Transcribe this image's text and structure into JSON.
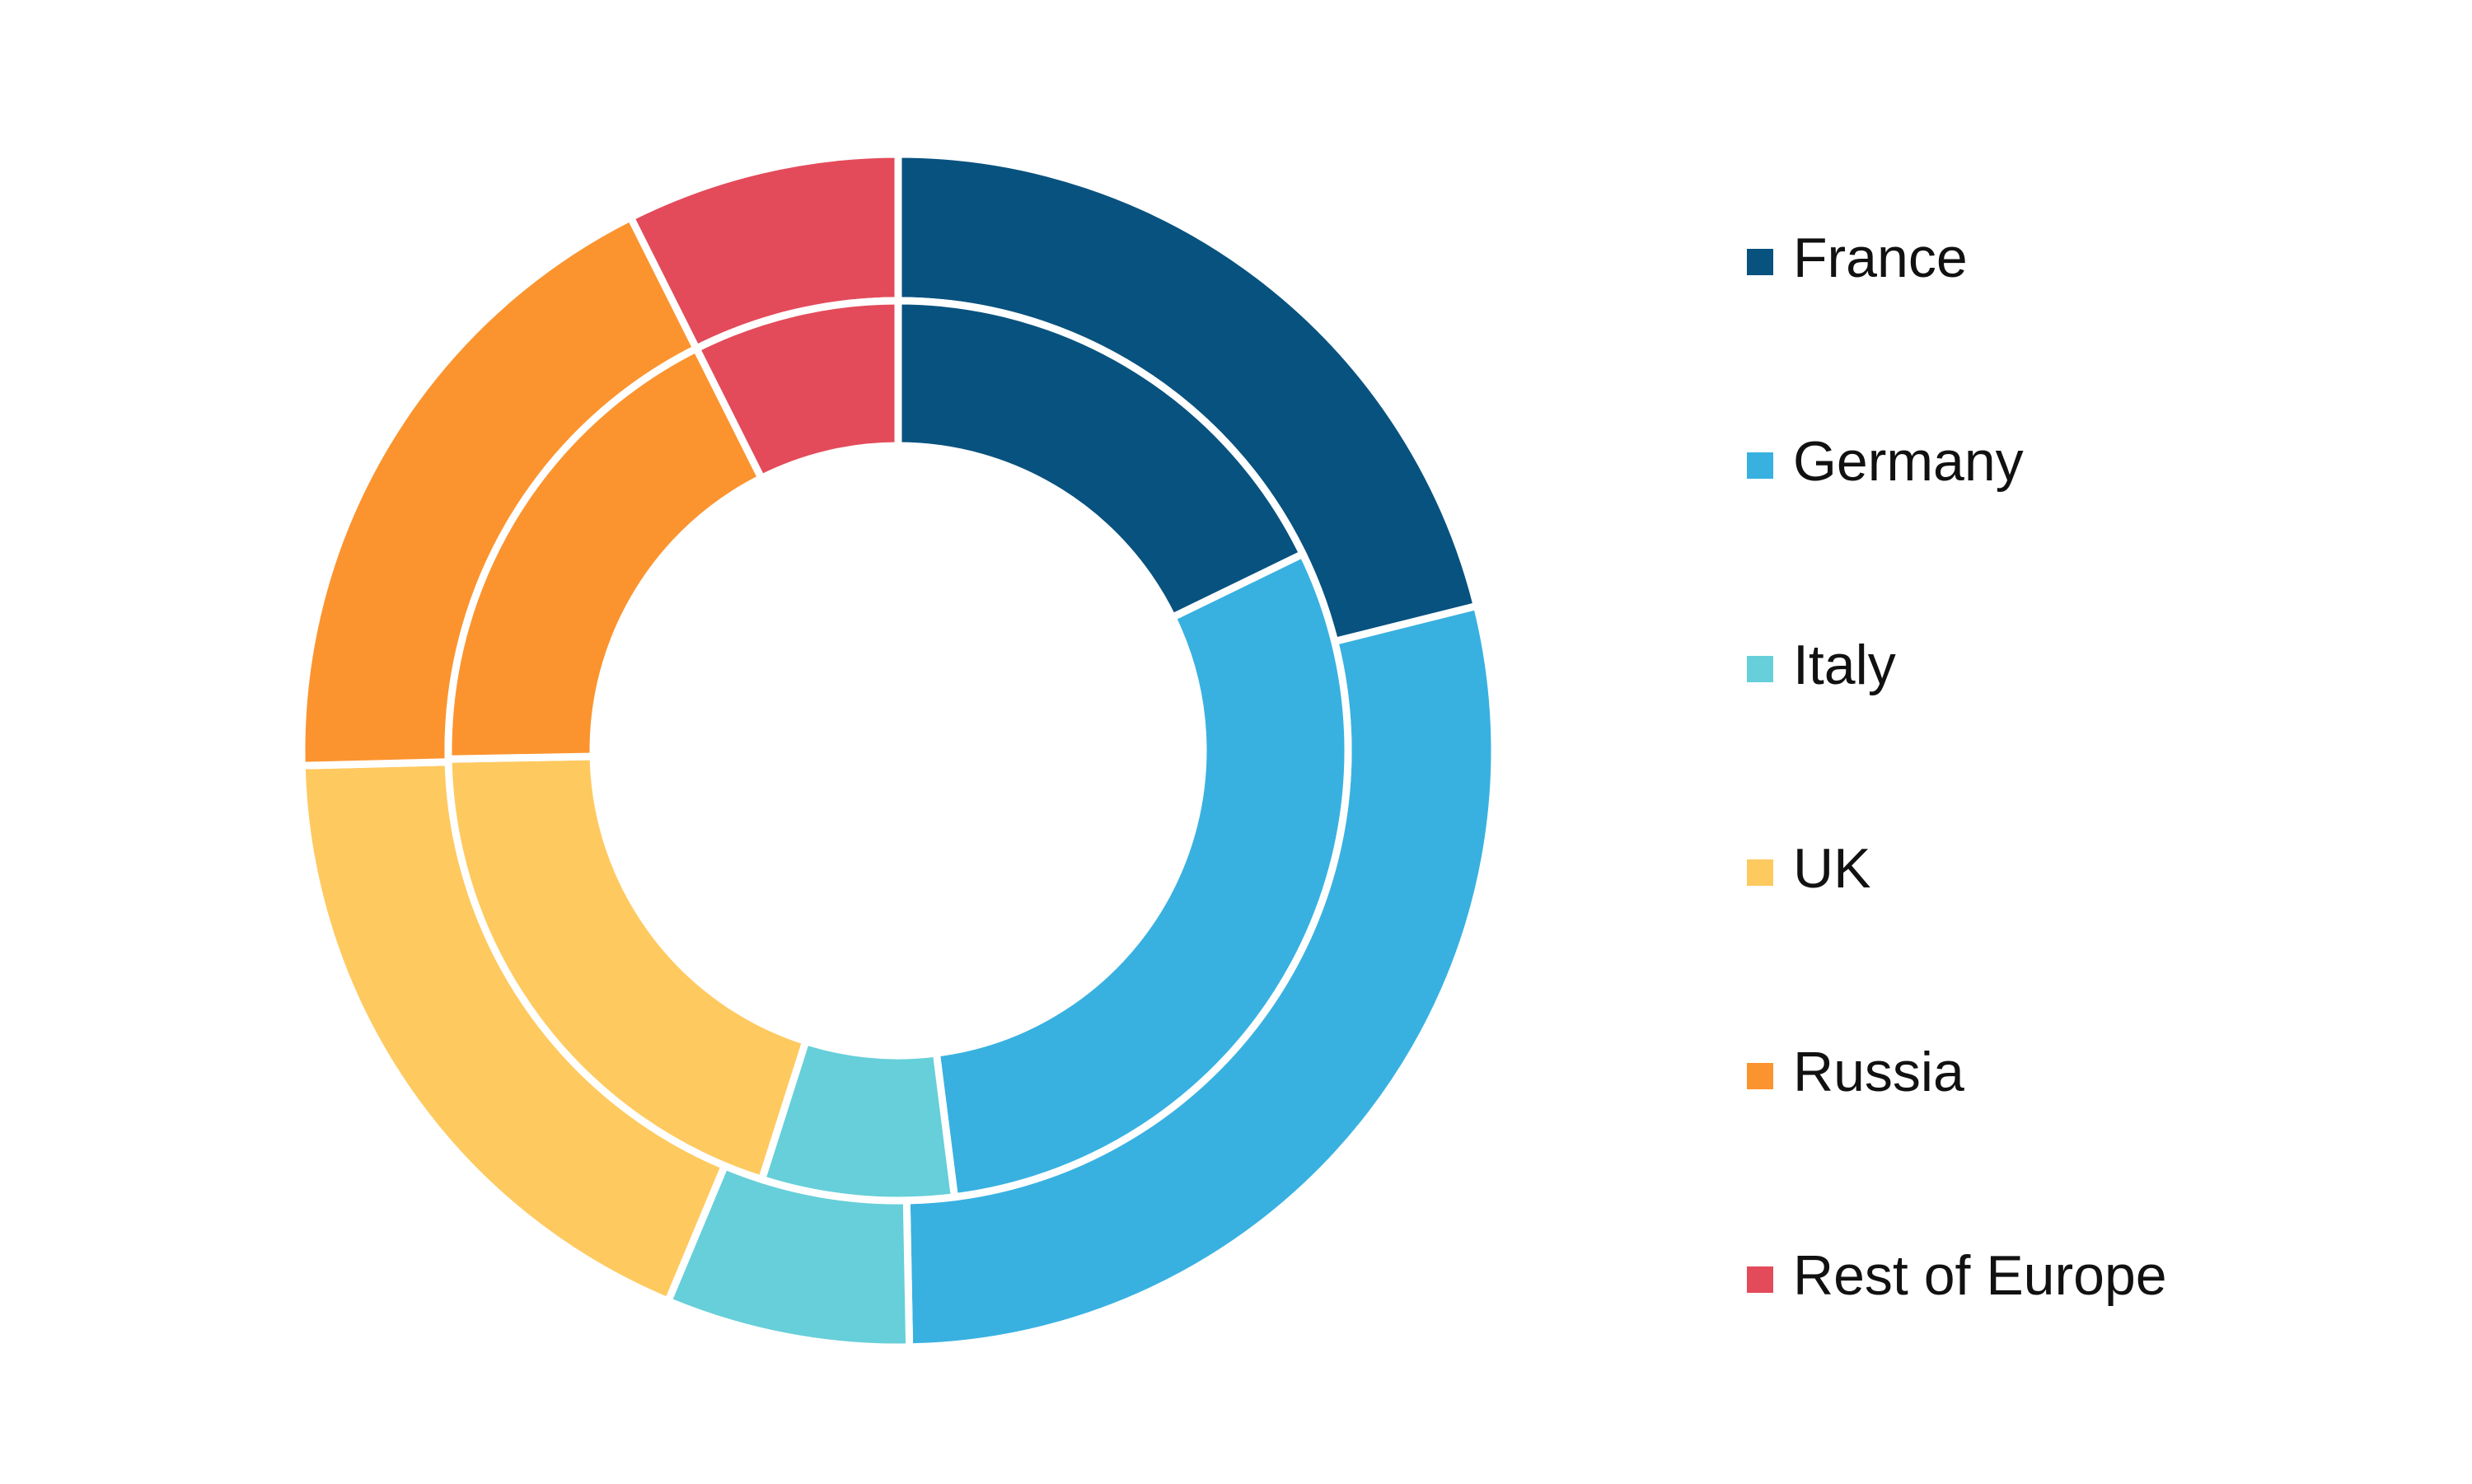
{
  "chart_data": {
    "type": "donut",
    "categories": [
      "France",
      "Germany",
      "Italy",
      "UK",
      "Russia",
      "Rest of Europe"
    ],
    "colors": [
      "#08527f",
      "#38b1e1",
      "#66cfd9",
      "#fec95f",
      "#fb942f",
      "#e34b5a"
    ],
    "series": [
      {
        "values": [
          21.1,
          28.6,
          6.6,
          18.3,
          18.0,
          7.4
        ]
      },
      {
        "values": [
          17.8,
          30.2,
          6.9,
          19.8,
          17.9,
          7.4
        ]
      }
    ],
    "legend": "right"
  }
}
